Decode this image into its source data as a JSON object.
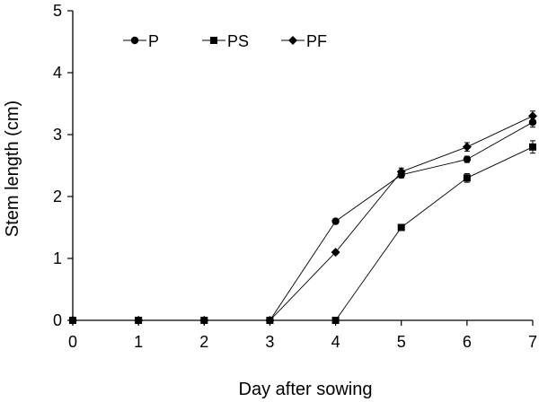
{
  "chart_data": {
    "type": "line",
    "title": "",
    "xlabel": "Day after sowing",
    "ylabel": "Stem length (cm)",
    "x": [
      0,
      1,
      2,
      3,
      4,
      5,
      6,
      7
    ],
    "xlim": [
      0,
      7
    ],
    "ylim": [
      0,
      5
    ],
    "xticks": [
      0,
      1,
      2,
      3,
      4,
      5,
      6,
      7
    ],
    "yticks": [
      0,
      1,
      2,
      3,
      4,
      5
    ],
    "grid": false,
    "legend_position": "top-left",
    "series": [
      {
        "name": "P",
        "marker": "circle",
        "values": [
          0,
          0,
          0,
          0,
          1.6,
          2.35,
          2.6,
          3.2
        ],
        "errors": [
          0,
          0,
          0,
          0,
          0,
          0.05,
          0.05,
          0.08
        ]
      },
      {
        "name": "PS",
        "marker": "square",
        "values": [
          0,
          0,
          0,
          0,
          0,
          1.5,
          2.3,
          2.8
        ],
        "errors": [
          0,
          0,
          0,
          0,
          0,
          0,
          0.07,
          0.1
        ]
      },
      {
        "name": "PF",
        "marker": "diamond",
        "values": [
          0,
          0,
          0,
          0,
          1.1,
          2.4,
          2.8,
          3.3
        ],
        "errors": [
          0,
          0,
          0,
          0,
          0,
          0.06,
          0.07,
          0.08
        ]
      }
    ],
    "colors": {
      "line": "#000000",
      "marker": "#000000",
      "axis": "#000000",
      "background": "#ffffff"
    }
  }
}
